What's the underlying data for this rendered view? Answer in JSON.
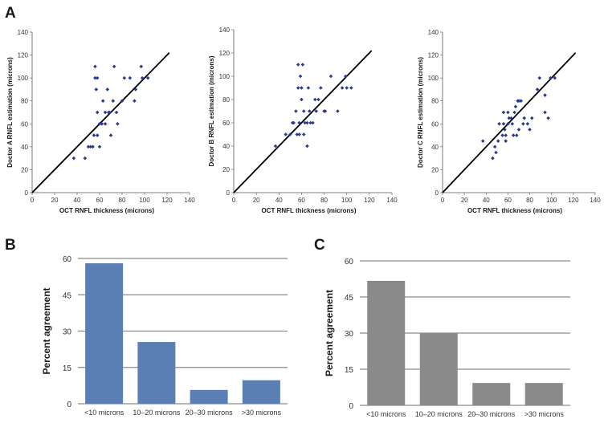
{
  "figure": {
    "panel_labels": {
      "a": "A",
      "b": "B",
      "c": "C"
    }
  },
  "chart_data": [
    {
      "id": "A1",
      "type": "scatter",
      "xlabel": "OCT RNFL thickness (microns)",
      "ylabel": "Doctor A RNFL estimation (microns)",
      "xlim": [
        0,
        140
      ],
      "ylim": [
        0,
        140
      ],
      "xticks": [
        0,
        20,
        40,
        60,
        80,
        100,
        120,
        140
      ],
      "yticks": [
        0,
        20,
        40,
        60,
        80,
        100,
        120,
        140
      ],
      "reference_line": [
        [
          0,
          0
        ],
        [
          122,
          122
        ]
      ],
      "marker_color": "#2b3a8c",
      "points": [
        [
          37,
          30
        ],
        [
          47,
          30
        ],
        [
          50,
          40
        ],
        [
          52,
          40
        ],
        [
          54,
          40
        ],
        [
          55,
          50
        ],
        [
          56,
          110
        ],
        [
          56,
          100
        ],
        [
          57,
          90
        ],
        [
          58,
          100
        ],
        [
          58,
          70
        ],
        [
          58,
          50
        ],
        [
          60,
          60
        ],
        [
          60,
          40
        ],
        [
          62,
          60
        ],
        [
          63,
          80
        ],
        [
          65,
          70
        ],
        [
          65,
          60
        ],
        [
          67,
          90
        ],
        [
          68,
          70
        ],
        [
          69,
          70
        ],
        [
          70,
          50
        ],
        [
          72,
          80
        ],
        [
          73,
          110
        ],
        [
          75,
          70
        ],
        [
          76,
          60
        ],
        [
          80,
          80
        ],
        [
          82,
          100
        ],
        [
          87,
          100
        ],
        [
          91,
          80
        ],
        [
          92,
          90
        ],
        [
          97,
          110
        ],
        [
          98,
          100
        ],
        [
          103,
          100
        ]
      ]
    },
    {
      "id": "A2",
      "type": "scatter",
      "xlabel": "OCT RNFL thickness (microns)",
      "ylabel": "Doctor B RNFL estimation (microns)",
      "xlim": [
        0,
        140
      ],
      "ylim": [
        0,
        140
      ],
      "xticks": [
        0,
        20,
        40,
        60,
        80,
        100,
        120,
        140
      ],
      "yticks": [
        0,
        20,
        40,
        60,
        80,
        100,
        120,
        140
      ],
      "reference_line": [
        [
          0,
          0
        ],
        [
          122,
          122
        ]
      ],
      "marker_color": "#2b3a8c",
      "points": [
        [
          37,
          40
        ],
        [
          46,
          50
        ],
        [
          50,
          50
        ],
        [
          52,
          60
        ],
        [
          53,
          60
        ],
        [
          55,
          70
        ],
        [
          56,
          50
        ],
        [
          57,
          110
        ],
        [
          57,
          90
        ],
        [
          58,
          60
        ],
        [
          58,
          50
        ],
        [
          59,
          100
        ],
        [
          60,
          90
        ],
        [
          60,
          80
        ],
        [
          61,
          110
        ],
        [
          62,
          70
        ],
        [
          62,
          50
        ],
        [
          63,
          60
        ],
        [
          65,
          60
        ],
        [
          65,
          40
        ],
        [
          66,
          90
        ],
        [
          67,
          70
        ],
        [
          68,
          60
        ],
        [
          70,
          60
        ],
        [
          72,
          80
        ],
        [
          73,
          70
        ],
        [
          75,
          80
        ],
        [
          77,
          90
        ],
        [
          80,
          70
        ],
        [
          81,
          70
        ],
        [
          86,
          100
        ],
        [
          92,
          70
        ],
        [
          96,
          90
        ],
        [
          99,
          100
        ],
        [
          100,
          90
        ],
        [
          104,
          90
        ]
      ]
    },
    {
      "id": "A3",
      "type": "scatter",
      "xlabel": "OCT RNFL thickness (microns)",
      "ylabel": "Doctor C RNFL estimation (microns)",
      "xlim": [
        0,
        140
      ],
      "ylim": [
        0,
        140
      ],
      "xticks": [
        0,
        20,
        40,
        60,
        80,
        100,
        120,
        140
      ],
      "yticks": [
        0,
        20,
        40,
        60,
        80,
        100,
        120,
        140
      ],
      "reference_line": [
        [
          0,
          0
        ],
        [
          122,
          122
        ]
      ],
      "marker_color": "#2b3a8c",
      "points": [
        [
          37,
          45
        ],
        [
          46,
          30
        ],
        [
          48,
          40
        ],
        [
          49,
          35
        ],
        [
          51,
          45
        ],
        [
          52,
          60
        ],
        [
          55,
          50
        ],
        [
          56,
          60
        ],
        [
          56,
          70
        ],
        [
          57,
          55
        ],
        [
          58,
          50
        ],
        [
          58,
          45
        ],
        [
          60,
          60
        ],
        [
          60,
          70
        ],
        [
          61,
          65
        ],
        [
          63,
          65
        ],
        [
          64,
          60
        ],
        [
          65,
          50
        ],
        [
          66,
          70
        ],
        [
          67,
          75
        ],
        [
          68,
          50
        ],
        [
          69,
          80
        ],
        [
          70,
          55
        ],
        [
          70,
          80
        ],
        [
          72,
          80
        ],
        [
          74,
          60
        ],
        [
          75,
          65
        ],
        [
          78,
          60
        ],
        [
          80,
          55
        ],
        [
          82,
          65
        ],
        [
          87,
          90
        ],
        [
          89,
          100
        ],
        [
          94,
          85
        ],
        [
          94,
          70
        ],
        [
          97,
          65
        ],
        [
          99,
          100
        ],
        [
          103,
          100
        ]
      ]
    },
    {
      "id": "B",
      "type": "bar",
      "ylabel": "Percent agreement",
      "categories": [
        "<10 microns",
        "10–20 microns",
        "20–30 microns",
        ">30 microns"
      ],
      "values": [
        58,
        25.5,
        5.7,
        9.7
      ],
      "ylim": [
        0,
        60
      ],
      "yticks": [
        0,
        15,
        30,
        45,
        60
      ],
      "color": "#5b7fb4"
    },
    {
      "id": "C",
      "type": "bar",
      "ylabel": "Percent agreement",
      "categories": [
        "<10 microns",
        "10–20 microns",
        "20–30 microns",
        ">30 microns"
      ],
      "values": [
        51.7,
        30,
        9.3,
        9.3
      ],
      "ylim": [
        0,
        60
      ],
      "yticks": [
        0,
        15,
        30,
        45,
        60
      ],
      "color": "#8a8a8a"
    }
  ]
}
